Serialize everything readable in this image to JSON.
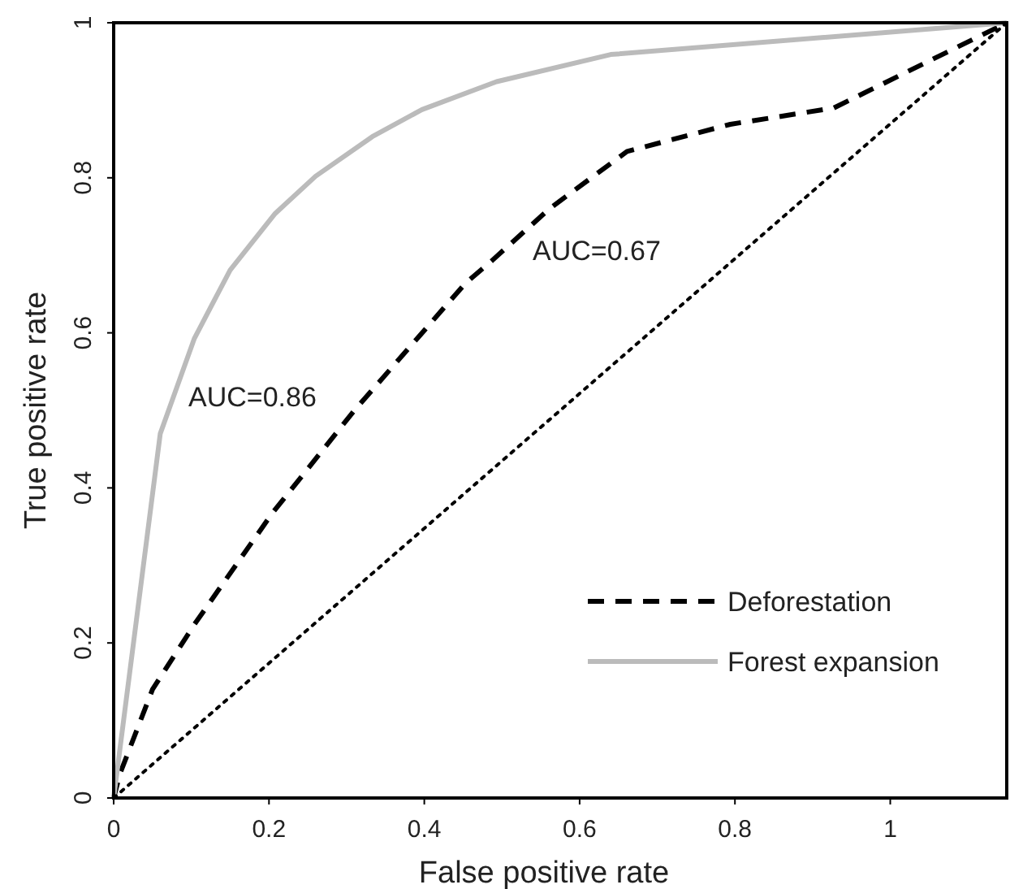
{
  "chart_data": {
    "type": "line",
    "xlabel": "False positive rate",
    "ylabel": "True positive rate",
    "xlim": [
      0,
      1.15
    ],
    "ylim": [
      0,
      1
    ],
    "xticks": [
      0,
      0.2,
      0.4,
      0.6,
      0.8,
      1
    ],
    "yticks": [
      0,
      0.2,
      0.4,
      0.6,
      0.8,
      1
    ],
    "grid": false,
    "legend": "bottom right",
    "series": [
      {
        "name": "Deforestation",
        "color": "#000000",
        "line_style": "dashed",
        "x": [
          0,
          0.008,
          0.05,
          0.104,
          0.204,
          0.31,
          0.453,
          0.487,
          0.561,
          0.661,
          0.794,
          0.927,
          1.15
        ],
        "values": [
          0,
          0.031,
          0.14,
          0.224,
          0.367,
          0.5,
          0.664,
          0.693,
          0.76,
          0.834,
          0.869,
          0.89,
          1
        ]
      },
      {
        "name": "Forest expansion",
        "color": "#bbbbbb",
        "line_style": "solid",
        "x": [
          0,
          0.06,
          0.104,
          0.15,
          0.208,
          0.26,
          0.333,
          0.397,
          0.493,
          0.64,
          1.15
        ],
        "values": [
          0,
          0.47,
          0.593,
          0.681,
          0.754,
          0.802,
          0.853,
          0.888,
          0.924,
          0.959,
          1
        ]
      },
      {
        "color": "#000000",
        "line_style": "dotted",
        "x": [
          0,
          1.15
        ],
        "values": [
          0,
          1
        ]
      }
    ],
    "annotations": [
      "AUC=0.86",
      "AUC=0.67"
    ]
  }
}
